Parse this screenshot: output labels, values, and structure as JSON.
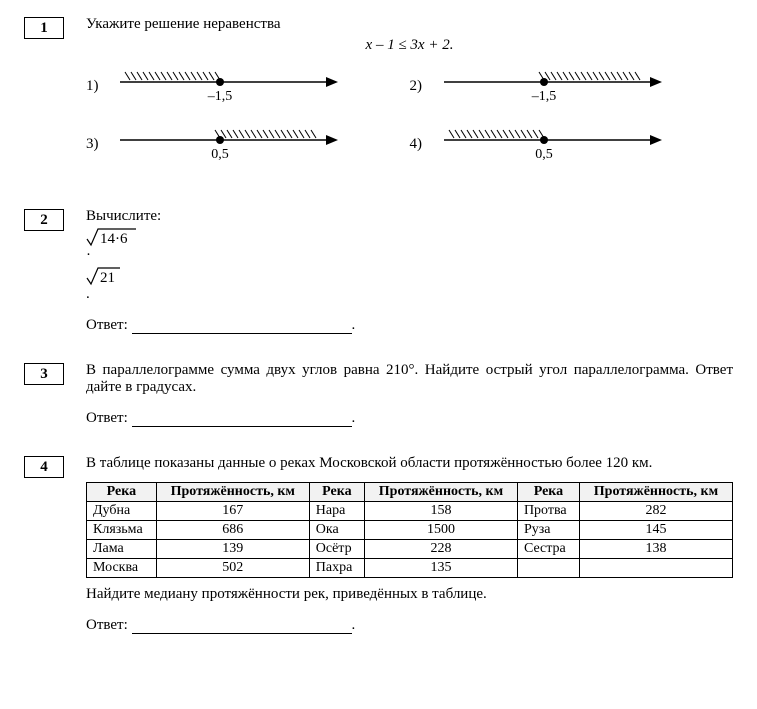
{
  "q1": {
    "num": "1",
    "prompt": "Укажите решение неравенства",
    "formula": "x – 1 ≤ 3x + 2.",
    "choices": [
      {
        "n": "1)",
        "label": "–1,5",
        "dir": "left",
        "bracket": "closed"
      },
      {
        "n": "2)",
        "label": "–1,5",
        "dir": "right",
        "bracket": "closed"
      },
      {
        "n": "3)",
        "label": "0,5",
        "dir": "right",
        "bracket": "closed"
      },
      {
        "n": "4)",
        "label": "0,5",
        "dir": "left",
        "bracket": "closed"
      }
    ]
  },
  "q2": {
    "num": "2",
    "prompt_prefix": "Вычислите: ",
    "expr_a": "14·6",
    "expr_b": "21",
    "answer_label": "Ответ:"
  },
  "q3": {
    "num": "3",
    "prompt": "В параллелограмме сумма двух углов равна 210°. Найдите острый угол параллелограмма. Ответ дайте в градусах.",
    "answer_label": "Ответ:"
  },
  "q4": {
    "num": "4",
    "prompt": "В таблице показаны данные о реках Московской области протяжённостью более 120 км.",
    "headers": {
      "river": "Река",
      "len": "Протяжённость, км"
    },
    "rows": [
      [
        "Дубна",
        "167",
        "Нара",
        "158",
        "Протва",
        "282"
      ],
      [
        "Клязьма",
        "686",
        "Ока",
        "1500",
        "Руза",
        "145"
      ],
      [
        "Лама",
        "139",
        "Осётр",
        "228",
        "Сестра",
        "138"
      ],
      [
        "Москва",
        "502",
        "Пахра",
        "135",
        "",
        ""
      ]
    ],
    "after": "Найдите медиану протяжённости рек, приведённых в таблице.",
    "answer_label": "Ответ:"
  },
  "svg": {
    "line_color": "#000000",
    "hatch_color": "#000000",
    "text_size": 14
  }
}
